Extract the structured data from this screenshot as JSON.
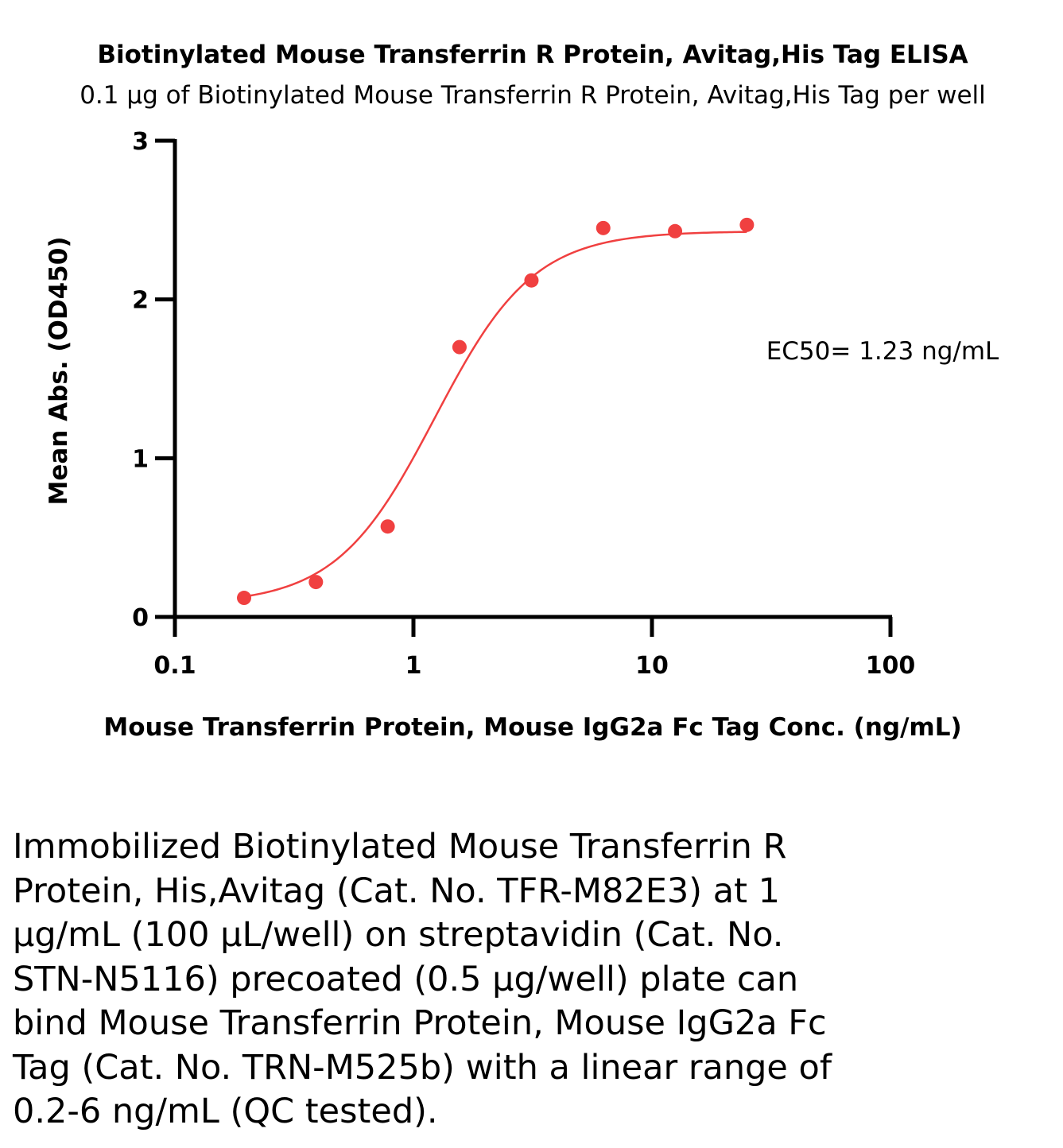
{
  "chart_data": {
    "type": "scatter",
    "title": "Biotinylated Mouse Transferrin R Protein, Avitag,His Tag ELISA",
    "subtitle": "0.1 μg of Biotinylated Mouse Transferrin R Protein, Avitag,His Tag per well",
    "xlabel": "Mouse Transferrin Protein, Mouse IgG2a Fc Tag Conc. (ng/mL)",
    "ylabel": "Mean Abs. (OD450)",
    "x_scale": "log",
    "xlim": [
      0.1,
      100
    ],
    "ylim": [
      0,
      3
    ],
    "x_ticks": [
      0.1,
      1,
      10,
      100
    ],
    "x_tick_labels": [
      "0.1",
      "1",
      "10",
      "100"
    ],
    "y_ticks": [
      0,
      1,
      2,
      3
    ],
    "y_tick_labels": [
      "0",
      "1",
      "2",
      "3"
    ],
    "grid": false,
    "annotation": "EC50= 1.23 ng/mL",
    "series": [
      {
        "color": "#f04040",
        "x": [
          0.195,
          0.39,
          0.78,
          1.56,
          3.125,
          6.25,
          12.5,
          25
        ],
        "y": [
          0.12,
          0.22,
          0.57,
          1.7,
          2.12,
          2.45,
          2.43,
          2.47
        ]
      }
    ],
    "fit": {
      "model": "4PL",
      "bottom": 0.08,
      "top": 2.43,
      "ec50": 1.23,
      "hill": 2.1
    }
  },
  "caption": "Immobilized Biotinylated Mouse Transferrin R\nProtein, His,Avitag (Cat. No. TFR-M82E3) at 1\nμg/mL (100 μL/well) on streptavidin (Cat. No.\nSTN-N5116) precoated (0.5 μg/well) plate can\nbind Mouse Transferrin Protein, Mouse IgG2a Fc\nTag (Cat. No. TRN-M525b) with a linear range of\n0.2-6 ng/mL (QC tested)."
}
